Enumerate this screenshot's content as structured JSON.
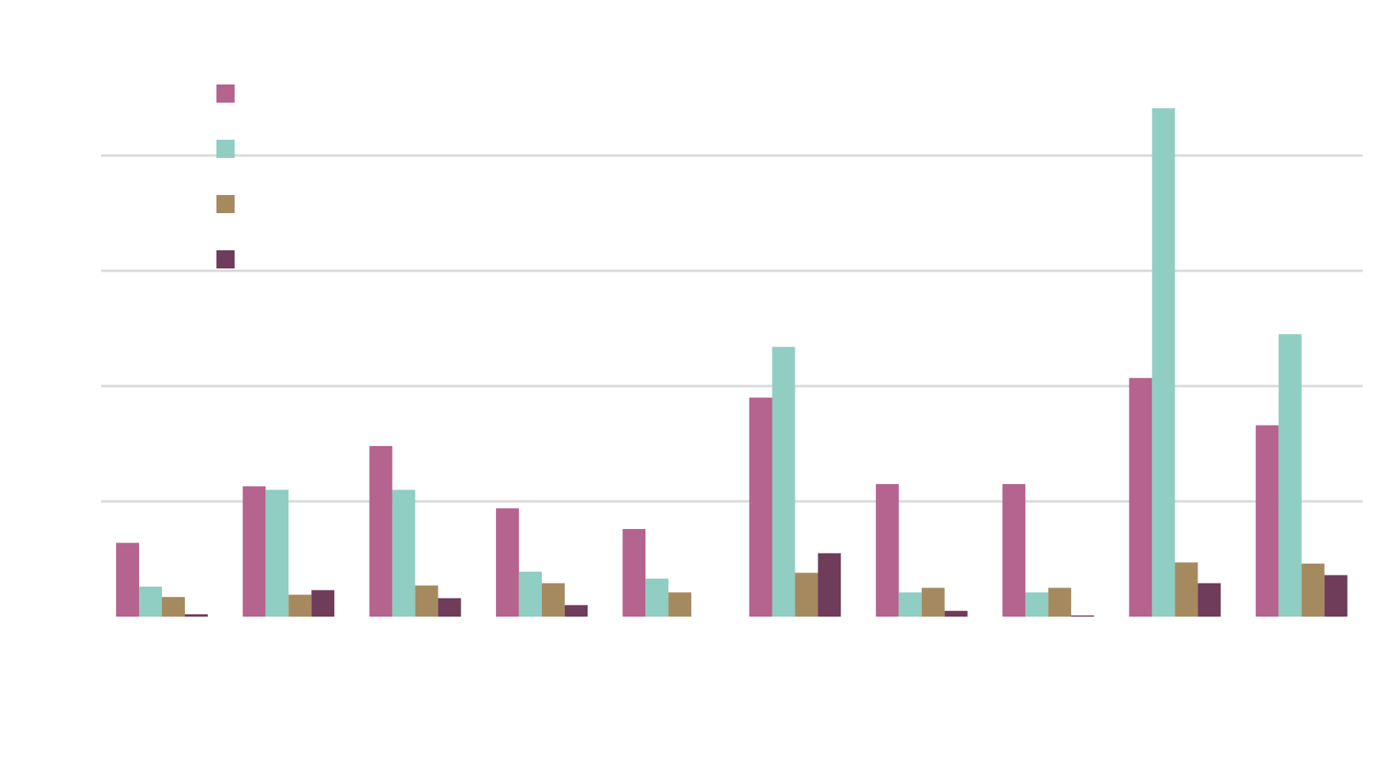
{
  "chart_data": {
    "type": "bar",
    "title": "",
    "xlabel": "",
    "ylabel": "",
    "categories": [
      "",
      "",
      "",
      "",
      "",
      "",
      "",
      "",
      "",
      ""
    ],
    "series": [
      {
        "name": "",
        "color": "#b5638f",
        "values": [
          32,
          56.5,
          74,
          47,
          38,
          95,
          57.5,
          57.5,
          103.5,
          83
        ]
      },
      {
        "name": "",
        "color": "#90cdc2",
        "values": [
          13,
          55,
          55,
          19.5,
          16.5,
          117,
          10.5,
          10.5,
          220.5,
          122.5
        ]
      },
      {
        "name": "",
        "color": "#a58a60",
        "values": [
          8.5,
          9.5,
          13.5,
          14.5,
          10.5,
          19,
          12.5,
          12.5,
          23.5,
          23
        ]
      },
      {
        "name": "",
        "color": "#6f3c5a",
        "values": [
          1,
          11.5,
          8,
          5,
          0,
          27.5,
          2.5,
          0.5,
          14.5,
          18
        ]
      }
    ],
    "ylim": [
      0,
      230
    ],
    "yticks": [
      0,
      50,
      100,
      150,
      200
    ],
    "grid": true,
    "legend": "top-left"
  }
}
